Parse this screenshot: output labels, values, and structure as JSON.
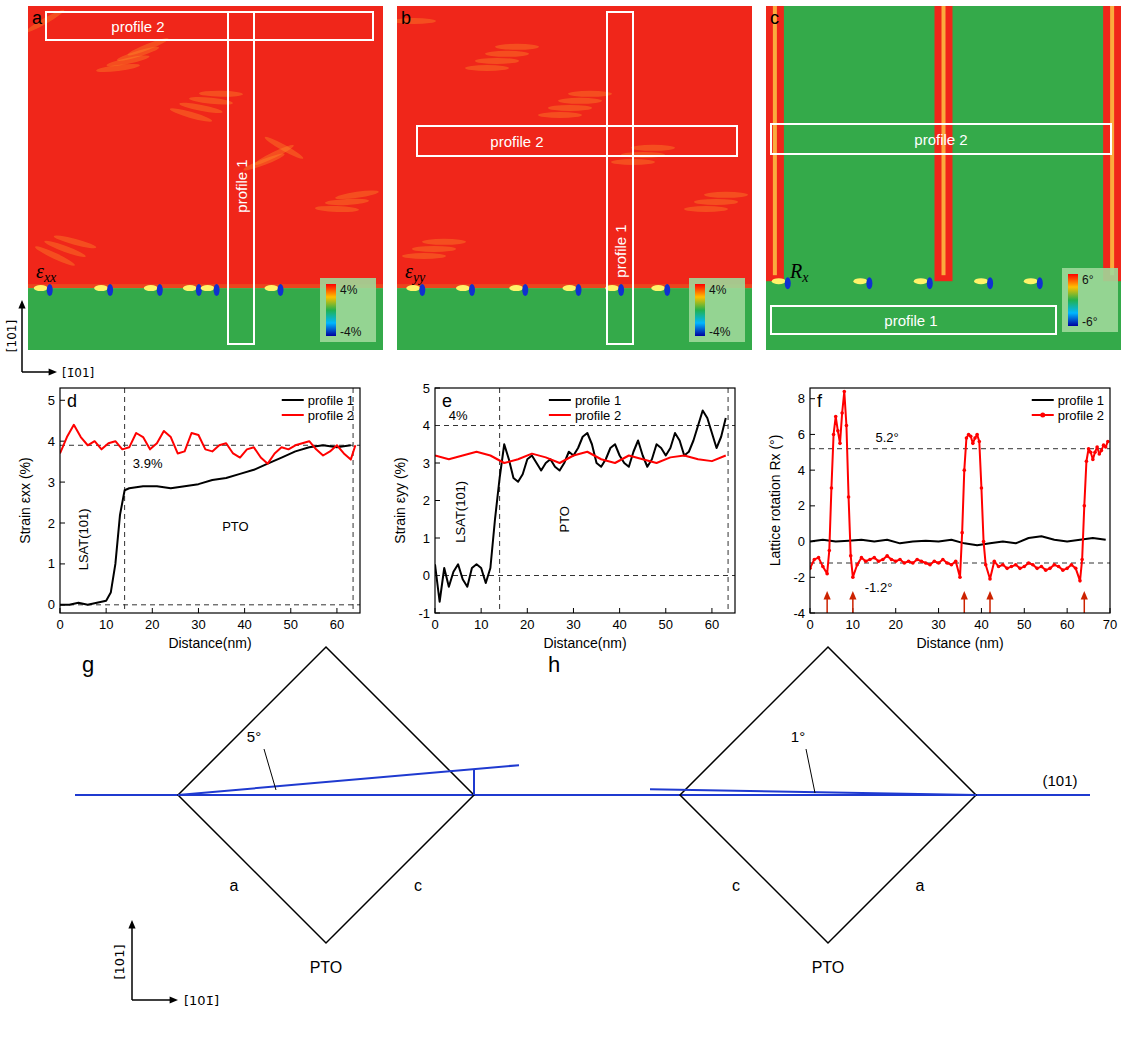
{
  "map_axes": {
    "vertical": "[101]",
    "horizontal": "[1̄01]"
  },
  "maps": [
    {
      "panel": "a",
      "label": "εxx",
      "profiles": [
        "profile 2",
        "profile 1"
      ],
      "colorbar": [
        "4%",
        "-4%"
      ]
    },
    {
      "panel": "b",
      "label": "εyy",
      "profiles": [
        "profile 2",
        "profile 1"
      ],
      "colorbar": [
        "4%",
        "-4%"
      ]
    },
    {
      "panel": "c",
      "label": "Rx",
      "profiles": [
        "profile 2",
        "profile 1"
      ],
      "colorbar": [
        "6°",
        "-6°"
      ]
    }
  ],
  "chart_data": [
    {
      "type": "line",
      "panel": "d",
      "xlabel": "Distance(nm)",
      "ylabel": "Strain εxx (%)",
      "xlim": [
        0,
        65
      ],
      "ylim": [
        -0.2,
        5.3
      ],
      "xticks": [
        0,
        10,
        20,
        30,
        40,
        50,
        60
      ],
      "yticks": [
        0,
        1,
        2,
        3,
        4,
        5
      ],
      "legend": "upper right",
      "hlines": [
        3.9,
        0
      ],
      "vlines": [
        14,
        63.5
      ],
      "annotations": [
        {
          "text": "3.9%",
          "x": 19,
          "y": 3.35
        },
        {
          "text": "LSAT(101)",
          "x": 5,
          "y": 1.6
        },
        {
          "text": "PTO",
          "x": 38,
          "y": 1.8
        }
      ],
      "series": [
        {
          "name": "profile 1",
          "color": "#000000",
          "x": [
            0,
            2,
            4,
            6,
            8,
            10,
            11,
            12,
            13,
            14,
            15,
            18,
            21,
            24,
            27,
            30,
            33,
            36,
            39,
            42,
            45,
            48,
            51,
            54,
            57,
            60,
            63
          ],
          "values": [
            0,
            0,
            0.05,
            0,
            0.05,
            0.1,
            0.3,
            1.0,
            2.2,
            2.8,
            2.85,
            2.9,
            2.9,
            2.85,
            2.9,
            2.95,
            3.05,
            3.1,
            3.2,
            3.3,
            3.45,
            3.6,
            3.75,
            3.85,
            3.9,
            3.85,
            3.9
          ]
        },
        {
          "name": "profile 2",
          "color": "#ff0000",
          "x": [
            0,
            1.5,
            3,
            4.5,
            6,
            7.5,
            9,
            10.5,
            12,
            13.5,
            15,
            16.5,
            18,
            19.5,
            21,
            22.5,
            24,
            25.5,
            27,
            28.5,
            30,
            31.5,
            33,
            34.5,
            36,
            37.5,
            39,
            40.5,
            42,
            43.5,
            45,
            46.5,
            48,
            49.5,
            51,
            52.5,
            54,
            55.5,
            57,
            58.5,
            60,
            61.5,
            63,
            64
          ],
          "values": [
            3.7,
            4.1,
            4.4,
            4.1,
            3.9,
            4.0,
            3.8,
            3.95,
            4.0,
            3.8,
            3.85,
            4.2,
            4.1,
            3.8,
            3.95,
            4.25,
            4.1,
            3.7,
            3.75,
            4.2,
            4.15,
            3.8,
            3.75,
            3.9,
            3.95,
            3.7,
            3.6,
            3.8,
            3.85,
            3.6,
            3.45,
            3.7,
            3.85,
            3.8,
            3.9,
            3.95,
            4.0,
            3.8,
            3.65,
            3.75,
            3.9,
            3.7,
            3.55,
            3.9
          ]
        }
      ]
    },
    {
      "type": "line",
      "panel": "e",
      "xlabel": "Distance(nm)",
      "ylabel": "Strain εyy (%)",
      "xlim": [
        0,
        65
      ],
      "ylim": [
        -1,
        5
      ],
      "xticks": [
        0,
        10,
        20,
        30,
        40,
        50,
        60
      ],
      "yticks": [
        -1,
        0,
        1,
        2,
        3,
        4,
        5
      ],
      "legend": "upper center",
      "hlines": [
        4,
        0
      ],
      "vlines": [
        14,
        63.5
      ],
      "annotations": [
        {
          "text": "4%",
          "x": 5,
          "y": 4.15
        },
        {
          "text": "LSAT(101)",
          "x": 5.5,
          "y": 1.7
        },
        {
          "text": "PTO",
          "x": 28,
          "y": 1.5
        }
      ],
      "series": [
        {
          "name": "profile 1",
          "color": "#000000",
          "x": [
            0,
            1,
            2,
            3,
            4,
            5,
            6,
            7,
            8,
            9,
            10,
            11,
            12,
            13,
            14,
            15,
            16,
            17,
            18,
            19,
            20,
            21,
            22,
            23,
            24,
            25,
            26,
            27,
            28,
            29,
            30,
            31,
            32,
            33,
            34,
            35,
            36,
            37,
            38,
            39,
            40,
            41,
            42,
            43,
            44,
            45,
            46,
            47,
            48,
            49,
            50,
            51,
            52,
            53,
            54,
            55,
            56,
            57,
            58,
            59,
            60,
            61,
            62,
            63
          ],
          "values": [
            0.3,
            -0.7,
            0.2,
            -0.3,
            0.1,
            0.3,
            -0.1,
            -0.3,
            0.2,
            0.3,
            0.2,
            -0.2,
            0.2,
            1.5,
            2.6,
            3.5,
            3.1,
            2.6,
            2.5,
            2.7,
            3.1,
            3.2,
            3.0,
            2.8,
            3.0,
            3.1,
            2.9,
            2.8,
            3.0,
            3.3,
            3.2,
            3.4,
            3.7,
            3.8,
            3.5,
            3.0,
            2.9,
            3.1,
            3.4,
            3.5,
            3.2,
            3.0,
            2.9,
            3.3,
            3.6,
            3.2,
            2.9,
            3.1,
            3.5,
            3.4,
            3.2,
            3.4,
            3.8,
            3.6,
            3.2,
            3.3,
            3.6,
            4.0,
            4.4,
            4.2,
            3.8,
            3.4,
            3.7,
            4.2
          ]
        },
        {
          "name": "profile 2",
          "color": "#ff0000",
          "x": [
            0,
            3,
            6,
            9,
            12,
            15,
            18,
            21,
            24,
            27,
            30,
            33,
            36,
            39,
            42,
            45,
            48,
            51,
            54,
            57,
            60,
            63
          ],
          "values": [
            3.2,
            3.1,
            3.2,
            3.3,
            3.2,
            3.0,
            3.1,
            3.25,
            3.15,
            3.0,
            3.2,
            3.3,
            3.1,
            3.0,
            3.2,
            3.1,
            3.0,
            3.15,
            3.2,
            3.1,
            3.05,
            3.2
          ]
        }
      ]
    },
    {
      "type": "line",
      "panel": "f",
      "xlabel": "Distance (nm)",
      "ylabel": "Lattice rotation Rx (°)",
      "xlim": [
        0,
        70
      ],
      "ylim": [
        -4,
        8.6
      ],
      "xticks": [
        0,
        10,
        20,
        30,
        40,
        50,
        60,
        70
      ],
      "yticks": [
        -4,
        -2,
        0,
        2,
        4,
        6,
        8
      ],
      "legend": "upper right",
      "hlines": [
        5.2,
        -1.2
      ],
      "annotations": [
        {
          "text": "5.2°",
          "x": 18,
          "y": 5.6
        },
        {
          "text": "-1.2°",
          "x": 16,
          "y": -2.8
        }
      ],
      "arrows": [
        4,
        10,
        36,
        42,
        64
      ],
      "series": [
        {
          "name": "profile 1",
          "color": "#000000",
          "x": [
            0,
            3,
            6,
            9,
            12,
            15,
            18,
            21,
            24,
            27,
            30,
            33,
            36,
            39,
            42,
            45,
            48,
            51,
            54,
            57,
            60,
            63,
            66,
            69
          ],
          "values": [
            0,
            0.1,
            0,
            0.05,
            0.1,
            0,
            0.1,
            -0.1,
            0,
            0.05,
            0,
            0.1,
            -0.1,
            -0.2,
            -0.1,
            0,
            -0.1,
            0.2,
            0.3,
            0.1,
            0,
            0.1,
            0.2,
            0.1
          ]
        },
        {
          "name": "profile 2",
          "color": "#ff0000",
          "marker": "circle",
          "x": [
            0,
            1,
            2,
            3,
            4,
            4.5,
            5,
            5.5,
            6,
            6.5,
            7,
            7.5,
            8,
            8.5,
            9,
            9.5,
            10,
            11,
            12,
            13,
            14,
            15,
            16,
            17,
            18,
            19,
            20,
            21,
            22,
            23,
            24,
            25,
            26,
            27,
            28,
            29,
            30,
            31,
            32,
            33,
            34,
            35,
            35.5,
            36,
            36.5,
            37,
            37.5,
            38,
            38.5,
            39,
            39.5,
            40,
            40.5,
            41,
            42,
            43,
            44,
            45,
            46,
            47,
            48,
            49,
            50,
            51,
            52,
            53,
            54,
            55,
            56,
            57,
            58,
            59,
            60,
            61,
            62,
            63,
            63.5,
            64,
            64.5,
            65,
            65.5,
            66,
            66.5,
            67,
            67.5,
            68,
            68.5,
            69,
            69.5
          ],
          "values": [
            -1.5,
            -1.0,
            -0.9,
            -1.4,
            -1.8,
            -0.5,
            3.0,
            6.0,
            7.0,
            6.2,
            5.5,
            7.2,
            8.4,
            6.5,
            2.5,
            -0.8,
            -2.0,
            -1.3,
            -0.9,
            -1.1,
            -1.0,
            -0.9,
            -1.1,
            -1.0,
            -0.8,
            -1.0,
            -1.1,
            -1.0,
            -1.2,
            -1.1,
            -1.2,
            -1.0,
            -1.1,
            -1.2,
            -1.3,
            -1.1,
            -1.2,
            -1.0,
            -1.2,
            -1.3,
            -1.1,
            -2.0,
            0.5,
            4.0,
            5.8,
            6.0,
            5.9,
            5.5,
            5.8,
            6.0,
            5.6,
            3.0,
            0.0,
            -1.3,
            -2.1,
            -1.1,
            -1.4,
            -1.3,
            -1.5,
            -1.4,
            -1.3,
            -1.5,
            -1.4,
            -1.2,
            -1.3,
            -1.5,
            -1.4,
            -1.6,
            -1.5,
            -1.3,
            -1.4,
            -1.6,
            -1.5,
            -1.3,
            -1.5,
            -2.2,
            -1.0,
            2.0,
            4.5,
            5.2,
            5.0,
            4.6,
            5.0,
            5.3,
            4.9,
            5.1,
            5.4,
            5.3,
            5.6
          ]
        }
      ]
    }
  ],
  "diagram_axes": {
    "vertical": "[101]",
    "horizontal": "[101̄]"
  },
  "plane": "(101)",
  "diagrams": [
    {
      "panel": "g",
      "angle": 5,
      "angle_label": "5°",
      "left": "a",
      "right": "c",
      "material": "PTO"
    },
    {
      "panel": "h",
      "angle": 1,
      "angle_label": "1°",
      "left": "c",
      "right": "a",
      "material": "PTO"
    }
  ]
}
